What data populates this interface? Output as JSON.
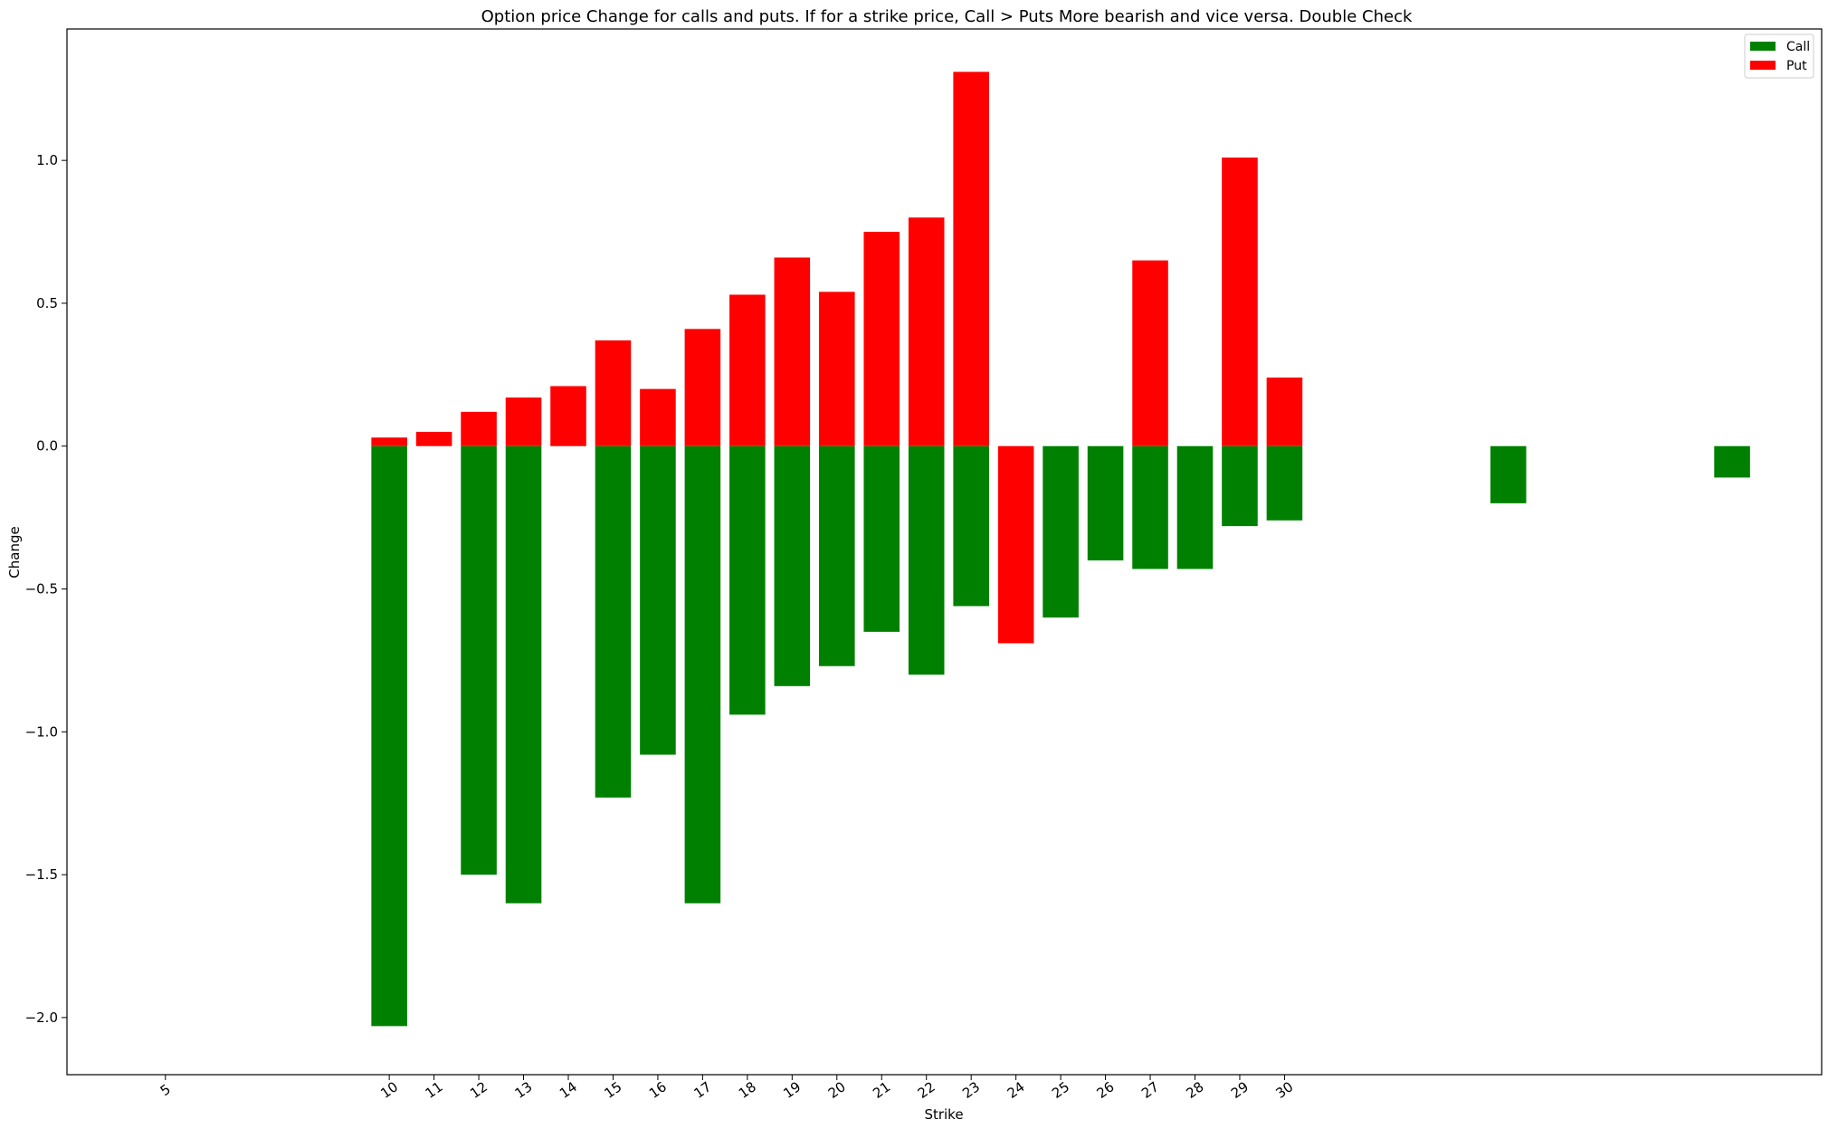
{
  "chart_data": {
    "type": "bar",
    "title": "Option price Change for calls and puts. If for a strike price, Call > Puts More bearish and vice versa. Double Check",
    "xlabel": "Strike",
    "ylabel": "Change",
    "xlim": [
      2.8,
      42
    ],
    "ylim": [
      -2.2,
      1.46
    ],
    "x_ticks": [
      5,
      10,
      11,
      12,
      13,
      14,
      15,
      16,
      17,
      18,
      19,
      20,
      21,
      22,
      23,
      24,
      25,
      26,
      27,
      28,
      29,
      30
    ],
    "x_tick_labels": [
      "5",
      "10",
      "11",
      "12",
      "13",
      "14",
      "15",
      "16",
      "17",
      "18",
      "19",
      "20",
      "21",
      "22",
      "23",
      "24",
      "25",
      "26",
      "27",
      "28",
      "29",
      "30"
    ],
    "y_ticks": [
      -2.0,
      -1.5,
      -1.0,
      -0.5,
      0.0,
      0.5,
      1.0
    ],
    "y_tick_labels": [
      "−2.0",
      "−1.5",
      "−1.0",
      "−0.5",
      "0.0",
      "0.5",
      "1.0"
    ],
    "grid": false,
    "legend_position": "top-right",
    "series": [
      {
        "name": "Call",
        "color": "#008000",
        "x": [
          10,
          11,
          12,
          13,
          14,
          15,
          16,
          17,
          18,
          19,
          20,
          21,
          22,
          23,
          24,
          25,
          26,
          27,
          28,
          29,
          30,
          35,
          40
        ],
        "values": [
          -2.03,
          0.0,
          -1.5,
          -1.6,
          0.0,
          -1.23,
          -1.08,
          -1.6,
          -0.94,
          -0.84,
          -0.77,
          -0.65,
          -0.8,
          -0.56,
          0.0,
          -0.6,
          -0.4,
          -0.43,
          -0.43,
          -0.28,
          -0.26,
          -0.2,
          -0.11
        ]
      },
      {
        "name": "Put",
        "color": "#ff0000",
        "x": [
          10,
          11,
          12,
          13,
          14,
          15,
          16,
          17,
          18,
          19,
          20,
          21,
          22,
          23,
          24,
          25,
          26,
          27,
          28,
          29,
          30
        ],
        "values": [
          0.03,
          0.05,
          0.12,
          0.17,
          0.21,
          0.37,
          0.2,
          0.41,
          0.53,
          0.66,
          0.54,
          0.75,
          0.8,
          1.31,
          -0.69,
          0.0,
          0.0,
          0.65,
          0.0,
          1.01,
          0.24
        ]
      }
    ]
  }
}
